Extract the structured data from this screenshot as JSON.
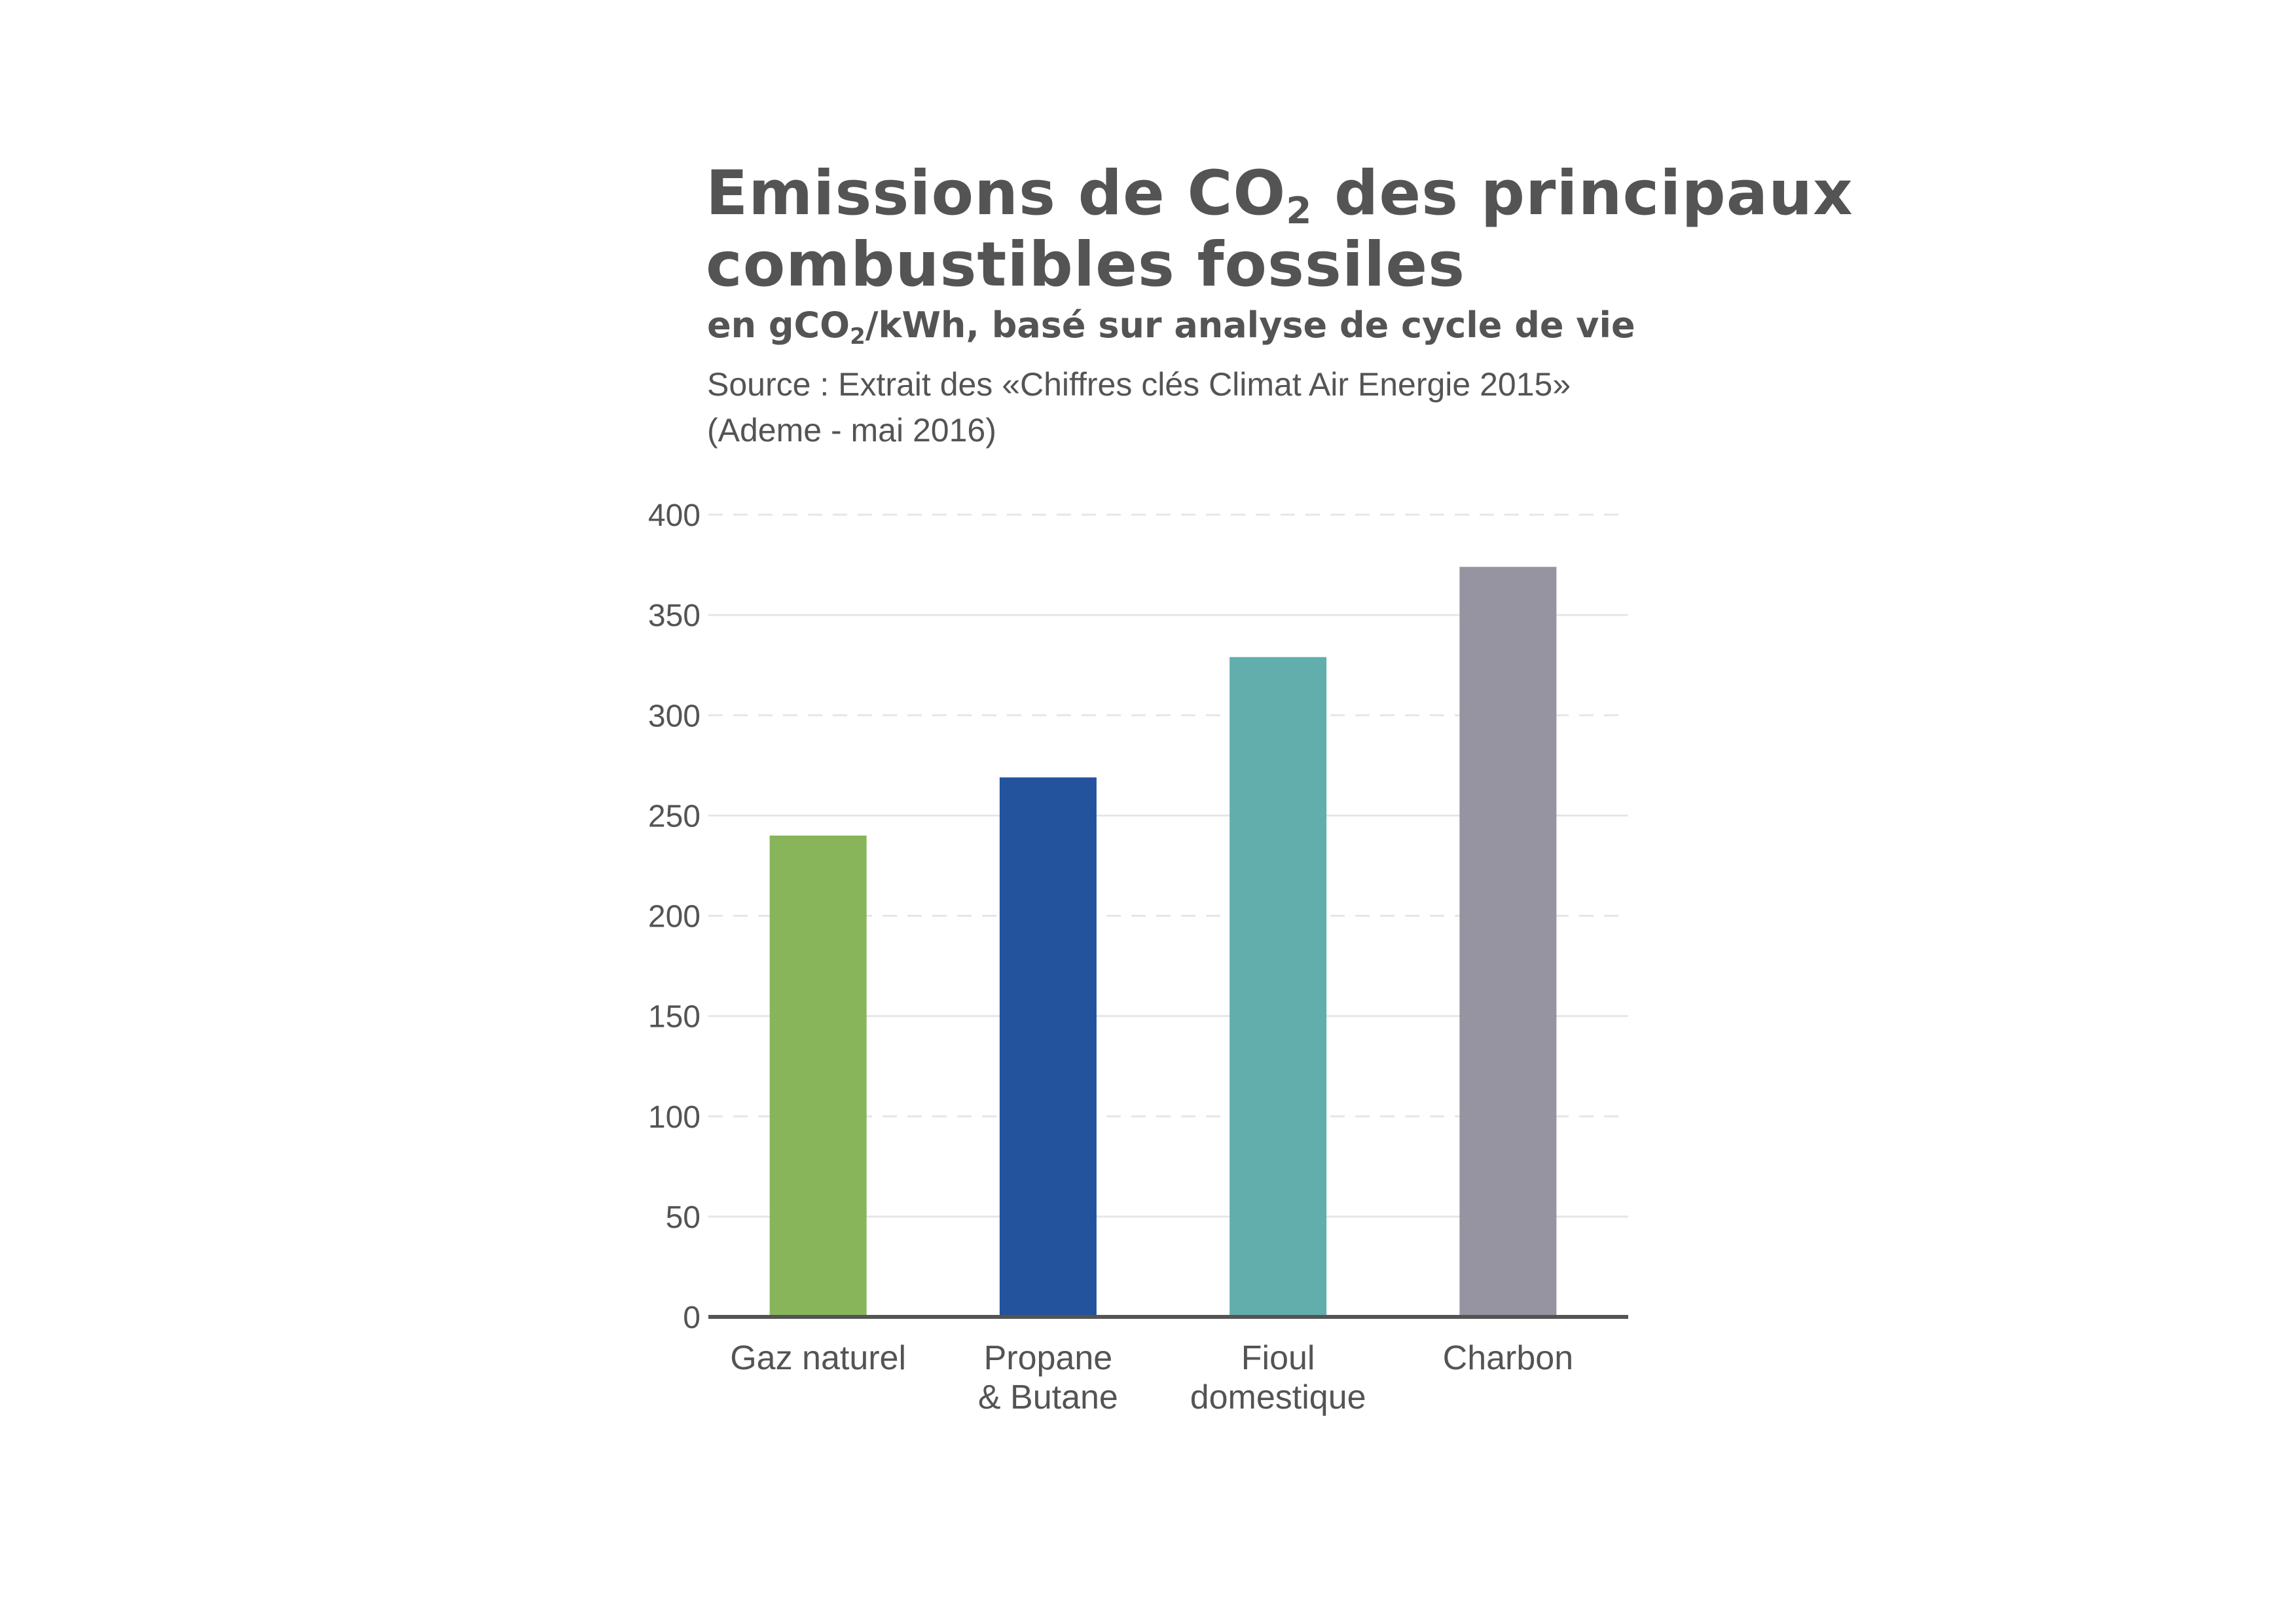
{
  "header": {
    "title_part1": "Emissions de CO",
    "title_sub": "2",
    "title_part2": " des principaux",
    "title_line2": "combustibles fossiles",
    "subtitle_part1": "en gCO",
    "subtitle_sub": "2",
    "subtitle_part2": "/kWh, basé sur analyse de cycle de vie",
    "source_line1": "Source : Extrait des «Chiffres clés Climat Air Energie 2015»",
    "source_line2": "(Ademe - mai 2016)"
  },
  "chart_data": {
    "type": "bar",
    "categories": [
      [
        "Gaz naturel"
      ],
      [
        "Propane",
        "& Butane"
      ],
      [
        "Fioul",
        "domestique"
      ],
      [
        "Charbon"
      ]
    ],
    "values": [
      240,
      269,
      329,
      374
    ],
    "colors": [
      "#88b55a",
      "#22539c",
      "#62aead",
      "#9694a0"
    ],
    "ylim": [
      0,
      400
    ],
    "yticks": [
      0,
      50,
      100,
      150,
      200,
      250,
      300,
      350,
      400
    ],
    "grid": true,
    "axis_color": "#545454",
    "grid_color": "#e6e6e6"
  }
}
